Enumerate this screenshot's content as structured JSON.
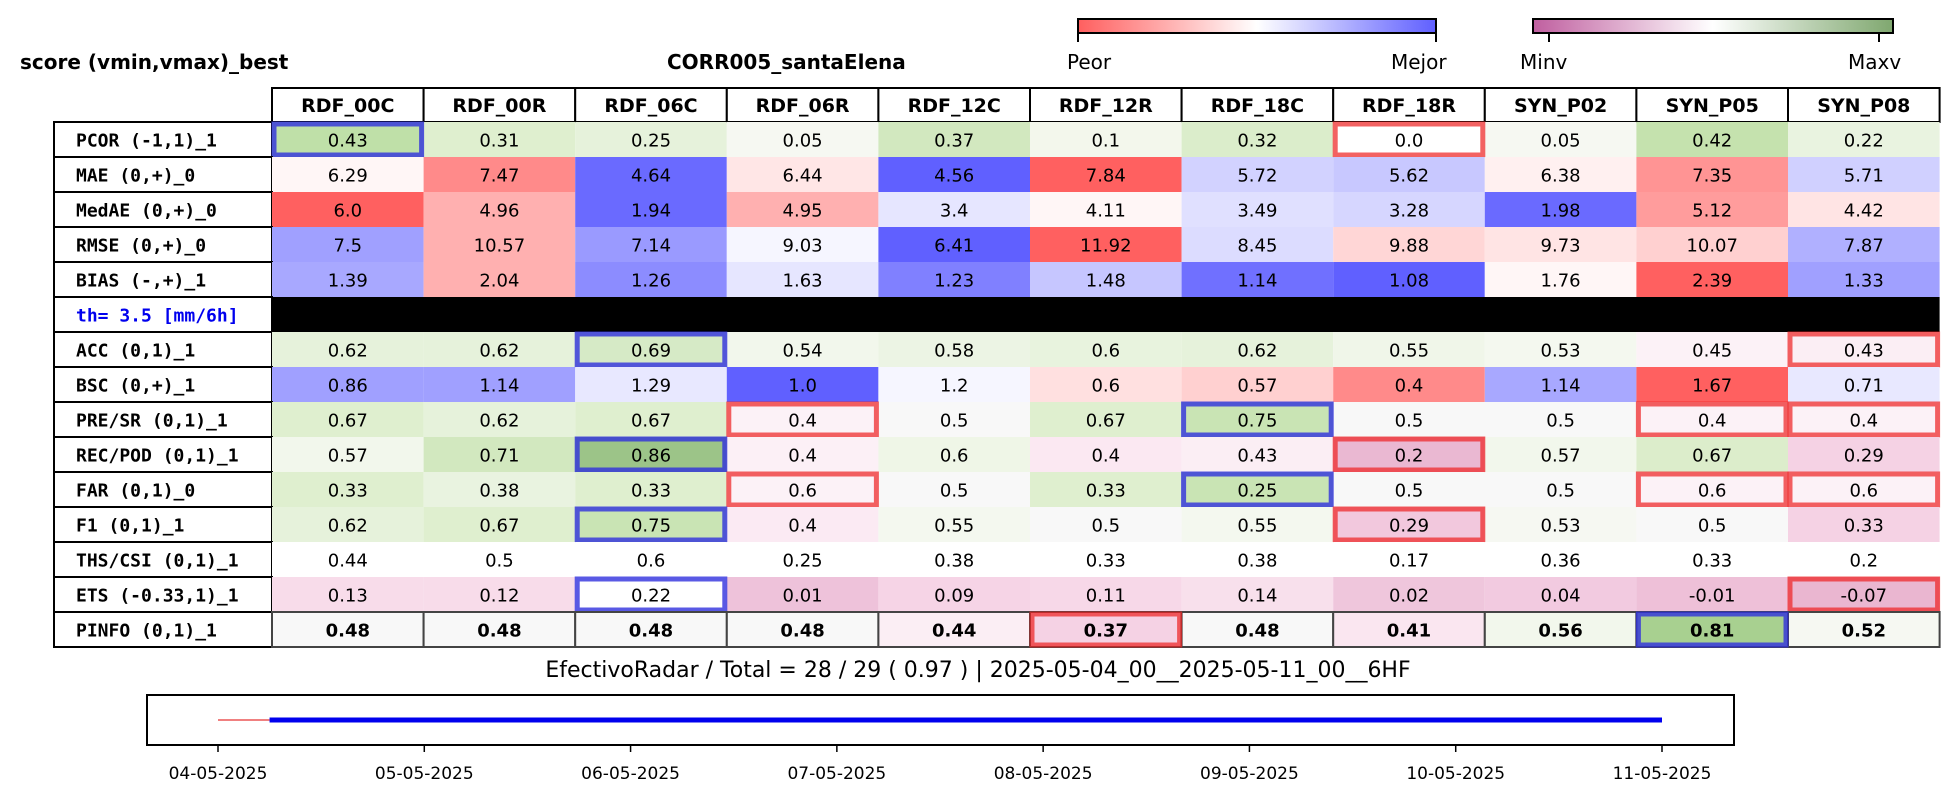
{
  "header": {
    "left_title": "score (vmin,vmax)_best",
    "center_title": "CORR005_santaElena"
  },
  "colorbars": {
    "performance": {
      "low_label": "Peor",
      "high_label": "Mejor",
      "low_color": "#ff6060",
      "mid_color": "#ffffff",
      "high_color": "#6060ff"
    },
    "value": {
      "low_label": "Minv",
      "high_label": "Maxv",
      "low_color": "#c060a0",
      "mid_color": "#ffffff",
      "high_color": "#80a870"
    }
  },
  "chart_data": {
    "type": "heatmap",
    "columns": [
      "RDF_00C",
      "RDF_00R",
      "RDF_06C",
      "RDF_06R",
      "RDF_12C",
      "RDF_12R",
      "RDF_18C",
      "RDF_18R",
      "SYN_P02",
      "SYN_P05",
      "SYN_P08"
    ],
    "rows": [
      {
        "label": "PCOR (-1,1)_1",
        "scale": "value",
        "values": [
          "0.43",
          "0.31",
          "0.25",
          "0.05",
          "0.37",
          "0.1",
          "0.32",
          "0.0",
          "0.05",
          "0.42",
          "0.22"
        ],
        "colors": [
          "#bfe0a8",
          "#dfefcf",
          "#e6f2db",
          "#f6f8f2",
          "#d2e8bf",
          "#f3f7ec",
          "#dbedcb",
          "#ffffff",
          "#f6f8f2",
          "#c5e2ae",
          "#e9f3e0"
        ],
        "best": [
          0
        ],
        "worst": [
          7
        ]
      },
      {
        "label": "MAE (0,+)_0",
        "scale": "performance",
        "values": [
          "6.29",
          "7.47",
          "4.64",
          "6.44",
          "4.56",
          "7.84",
          "5.72",
          "5.62",
          "6.38",
          "7.35",
          "5.71"
        ],
        "colors": [
          "#fff6f6",
          "#ff8a8a",
          "#6a6aff",
          "#ffe6e6",
          "#6060ff",
          "#ff6060",
          "#d2d2ff",
          "#c8c8ff",
          "#fff0f0",
          "#ff9494",
          "#d0d0ff"
        ],
        "best": [],
        "worst": []
      },
      {
        "label": "MedAE (0,+)_0",
        "scale": "performance",
        "values": [
          "6.0",
          "4.96",
          "1.94",
          "4.95",
          "3.4",
          "4.11",
          "3.49",
          "3.28",
          "1.98",
          "5.12",
          "4.42"
        ],
        "colors": [
          "#ff6060",
          "#ffb0b0",
          "#6a6aff",
          "#ffb0b0",
          "#e6e6ff",
          "#fff6f6",
          "#e0e0ff",
          "#d6d6ff",
          "#6a6aff",
          "#ff9c9c",
          "#ffe4e4"
        ],
        "best": [],
        "worst": []
      },
      {
        "label": "RMSE (0,+)_0",
        "scale": "performance",
        "values": [
          "7.5",
          "10.57",
          "7.14",
          "9.03",
          "6.41",
          "11.92",
          "8.45",
          "9.88",
          "9.73",
          "10.07",
          "7.87"
        ],
        "colors": [
          "#a0a0ff",
          "#ffb0b0",
          "#9a9aff",
          "#f6f6ff",
          "#6060ff",
          "#ff6060",
          "#dcdcff",
          "#ffd6d6",
          "#ffe4e4",
          "#ffd0d0",
          "#b0b0ff"
        ],
        "best": [],
        "worst": []
      },
      {
        "label": "BIAS (-,+)_1",
        "scale": "performance",
        "values": [
          "1.39",
          "2.04",
          "1.26",
          "1.63",
          "1.23",
          "1.48",
          "1.14",
          "1.08",
          "1.76",
          "2.39",
          "1.33"
        ],
        "colors": [
          "#a8a8ff",
          "#ffb0b0",
          "#8c8cff",
          "#e6e6ff",
          "#8080ff",
          "#c6c6ff",
          "#7070ff",
          "#6060ff",
          "#fff6f6",
          "#ff6060",
          "#a0a0ff"
        ],
        "best": [],
        "worst": []
      },
      {
        "label": "th= 3.5 [mm/6h]",
        "scale": "separator",
        "values": [],
        "colors": [],
        "best": [],
        "worst": []
      },
      {
        "label": "ACC (0,1)_1",
        "scale": "value",
        "values": [
          "0.62",
          "0.62",
          "0.69",
          "0.54",
          "0.58",
          "0.6",
          "0.62",
          "0.55",
          "0.53",
          "0.45",
          "0.43"
        ],
        "colors": [
          "#e6f2db",
          "#e6f2db",
          "#d6eac6",
          "#f2f7ec",
          "#ecf4e4",
          "#e8f3de",
          "#e6f2db",
          "#f0f6e9",
          "#f4f8ef",
          "#fcf2f7",
          "#fbeef4"
        ],
        "best": [
          2
        ],
        "worst": [
          10
        ]
      },
      {
        "label": "BSC (0,+)_1",
        "scale": "performance",
        "values": [
          "0.86",
          "1.14",
          "1.29",
          "1.0",
          "1.2",
          "0.6",
          "0.57",
          "0.4",
          "1.14",
          "1.67",
          "0.71"
        ],
        "colors": [
          "#a0a0ff",
          "#a0a0ff",
          "#e8e8ff",
          "#6060ff",
          "#f6f6ff",
          "#ffe0e0",
          "#ffd0d0",
          "#ff8a8a",
          "#a8a8ff",
          "#ff6060",
          "#e8e8ff"
        ],
        "best": [],
        "worst": []
      },
      {
        "label": "PRE/SR (0,1)_1",
        "scale": "value",
        "values": [
          "0.67",
          "0.62",
          "0.67",
          "0.4",
          "0.5",
          "0.67",
          "0.75",
          "0.5",
          "0.5",
          "0.4",
          "0.4"
        ],
        "colors": [
          "#dfefcf",
          "#e6f2db",
          "#dfefcf",
          "#fcf2f7",
          "#f8f8f8",
          "#dfefcf",
          "#c9e4b4",
          "#f8f8f8",
          "#f8f8f8",
          "#fcf2f7",
          "#fcf2f7"
        ],
        "best": [
          6
        ],
        "worst": [
          3,
          9,
          10
        ]
      },
      {
        "label": "REC/POD (0,1)_1",
        "scale": "value",
        "values": [
          "0.57",
          "0.71",
          "0.86",
          "0.4",
          "0.6",
          "0.4",
          "0.43",
          "0.2",
          "0.57",
          "0.67",
          "0.29"
        ],
        "colors": [
          "#f2f7ec",
          "#d2e8bf",
          "#9cc488",
          "#fcf0f6",
          "#eff6e7",
          "#fbe8f2",
          "#fbeef4",
          "#eab8d2",
          "#f2f7ec",
          "#dcedcb",
          "#f5d2e4"
        ],
        "best": [
          2
        ],
        "worst": [
          7
        ]
      },
      {
        "label": "FAR (0,1)_0",
        "scale": "value",
        "values": [
          "0.33",
          "0.38",
          "0.33",
          "0.6",
          "0.5",
          "0.33",
          "0.25",
          "0.5",
          "0.5",
          "0.6",
          "0.6"
        ],
        "colors": [
          "#dfefcf",
          "#e9f3e0",
          "#dfefcf",
          "#fcf2f7",
          "#f8f8f8",
          "#dfefcf",
          "#c9e4b4",
          "#f8f8f8",
          "#f8f8f8",
          "#fcf2f7",
          "#fcf2f7"
        ],
        "best": [
          6
        ],
        "worst": [
          3,
          9,
          10
        ]
      },
      {
        "label": "F1 (0,1)_1",
        "scale": "value",
        "values": [
          "0.62",
          "0.67",
          "0.75",
          "0.4",
          "0.55",
          "0.5",
          "0.55",
          "0.29",
          "0.53",
          "0.5",
          "0.33"
        ],
        "colors": [
          "#e6f2db",
          "#dfefcf",
          "#c9e4b4",
          "#fbeaf3",
          "#f4f8ef",
          "#f8f8f8",
          "#f4f8ef",
          "#f2c8dd",
          "#f6f8f2",
          "#f8f8f8",
          "#f5d2e4"
        ],
        "best": [
          2
        ],
        "worst": [
          7
        ]
      },
      {
        "label": "THS/CSI (0,1)_1",
        "scale": "value",
        "values": [
          "0.44",
          "0.5",
          "0.6",
          "0.25",
          "0.38",
          "0.33",
          "0.38",
          "0.17",
          "0.36",
          "0.33",
          "0.2"
        ],
        "colors": [
          "#ffffff",
          "#ffffff",
          "#ffffff",
          "#ffffff",
          "#ffffff",
          "#ffffff",
          "#ffffff",
          "#ffffff",
          "#ffffff",
          "#ffffff",
          "#ffffff"
        ],
        "best": [],
        "worst": []
      },
      {
        "label": "ETS (-0.33,1)_1",
        "scale": "value",
        "values": [
          "0.13",
          "0.12",
          "0.22",
          "0.01",
          "0.09",
          "0.11",
          "0.14",
          "0.02",
          "0.04",
          "-0.01",
          "-0.07"
        ],
        "colors": [
          "#f8dcea",
          "#f8dcea",
          "#ffffff",
          "#eec2da",
          "#f6d4e6",
          "#f7d8e8",
          "#f8e0ec",
          "#efc6dc",
          "#f2cae0",
          "#eec0d8",
          "#eab6d0"
        ],
        "best": [
          2
        ],
        "worst": [
          10
        ]
      },
      {
        "label": "PINFO (0,1)_1",
        "scale": "value",
        "bold": true,
        "values": [
          "0.48",
          "0.48",
          "0.48",
          "0.48",
          "0.44",
          "0.37",
          "0.48",
          "0.41",
          "0.56",
          "0.81",
          "0.52"
        ],
        "colors": [
          "#f8f8f8",
          "#f8f8f8",
          "#f8f8f8",
          "#f8f8f8",
          "#fbeef4",
          "#f5d2e4",
          "#f8f8f8",
          "#fae6f0",
          "#f2f7ec",
          "#a8d090",
          "#f6f8f2"
        ],
        "best": [
          9
        ],
        "worst": [
          5
        ]
      }
    ],
    "timeline": {
      "type": "line",
      "x_tick_labels": [
        "04-05-2025",
        "05-05-2025",
        "06-05-2025",
        "07-05-2025",
        "08-05-2025",
        "09-05-2025",
        "10-05-2025",
        "11-05-2025"
      ],
      "xlim": [
        "2025-05-04 00:00",
        "2025-05-11 00:00"
      ],
      "segments": [
        {
          "start": "2025-05-04 00:00",
          "end": "2025-05-04 06:00",
          "color": "#f08080",
          "status": "missing"
        },
        {
          "start": "2025-05-04 06:00",
          "end": "2025-05-11 00:00",
          "color": "#0000ee",
          "status": "available"
        }
      ]
    }
  },
  "footer": {
    "summary": "EfectivoRadar / Total  =  28 / 29 ( 0.97 ) | 2025-05-04_00__2025-05-11_00__6HF"
  },
  "highlight_colors": {
    "best": "#3030dd",
    "worst": "#ee2020",
    "separator": "#000000",
    "separator_text": "#0000ee"
  }
}
